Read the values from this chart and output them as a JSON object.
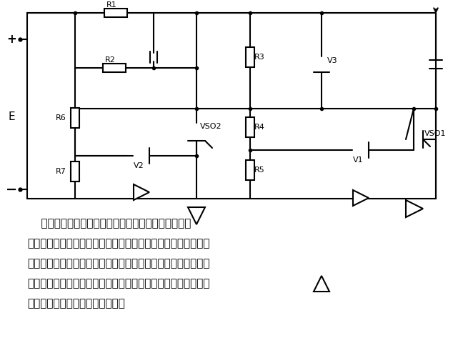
{
  "bg_color": "#ffffff",
  "line_color": "#000000",
  "figsize": [
    6.41,
    4.87
  ],
  "dpi": 100,
  "paragraph": [
    "    所示为等脉冲式晶闸管脉冲电源的主电路。一般的晶",
    "闸管脉冲电源由于火花间隙击穿的时间不一，加工脉冲电流的宽",
    "度也不一样，随加工状态的变化而变化，影响了加工工艺指标的",
    "提高。所以设计了此图中的以相同的脉冲电流宽度、相等的脉冲",
    "能量进行放电加工的等脉冲电源。"
  ]
}
